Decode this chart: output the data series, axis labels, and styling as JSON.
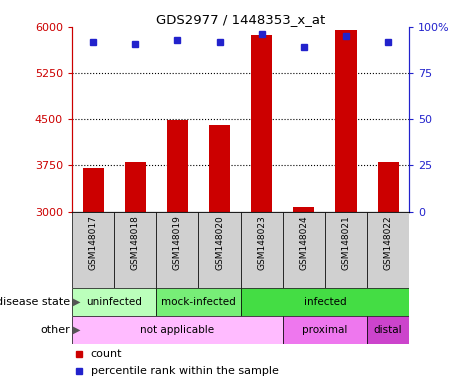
{
  "title": "GDS2977 / 1448353_x_at",
  "samples": [
    "GSM148017",
    "GSM148018",
    "GSM148019",
    "GSM148020",
    "GSM148023",
    "GSM148024",
    "GSM148021",
    "GSM148022"
  ],
  "counts": [
    3700,
    3800,
    4480,
    4400,
    5870,
    3080,
    5950,
    3800
  ],
  "percentile_ranks": [
    92,
    91,
    93,
    92,
    96,
    89,
    95,
    92
  ],
  "ymin": 3000,
  "ymax": 6000,
  "yticks": [
    3000,
    3750,
    4500,
    5250,
    6000
  ],
  "right_yticks": [
    0,
    25,
    50,
    75,
    100
  ],
  "bar_color": "#cc0000",
  "dot_color": "#2222cc",
  "disease_state": [
    {
      "label": "uninfected",
      "span": [
        0,
        2
      ],
      "color": "#bbffbb"
    },
    {
      "label": "mock-infected",
      "span": [
        2,
        4
      ],
      "color": "#77ee77"
    },
    {
      "label": "infected",
      "span": [
        4,
        8
      ],
      "color": "#44dd44"
    }
  ],
  "other": [
    {
      "label": "not applicable",
      "span": [
        0,
        5
      ],
      "color": "#ffbbff"
    },
    {
      "label": "proximal",
      "span": [
        5,
        7
      ],
      "color": "#ee77ee"
    },
    {
      "label": "distal",
      "span": [
        7,
        8
      ],
      "color": "#cc44cc"
    }
  ],
  "legend_count_label": "count",
  "legend_percentile_label": "percentile rank within the sample",
  "label_disease_state": "disease state",
  "label_other": "other",
  "axis_color_left": "#cc0000",
  "axis_color_right": "#2222cc",
  "bar_width": 0.5,
  "sample_bg": "#d0d0d0"
}
